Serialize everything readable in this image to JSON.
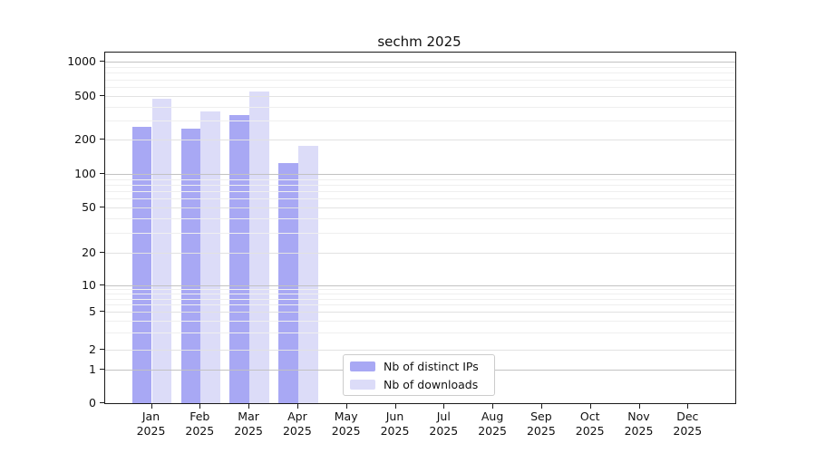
{
  "title": "sechm 2025",
  "legend": {
    "items": [
      {
        "label": "Nb of distinct IPs",
        "color": "#a8a8f4"
      },
      {
        "label": "Nb of downloads",
        "color": "#dcdcf8"
      }
    ]
  },
  "chart_data": {
    "type": "bar",
    "title": "sechm 2025",
    "x_tick_labels": [
      {
        "month": "Jan",
        "year": "2025"
      },
      {
        "month": "Feb",
        "year": "2025"
      },
      {
        "month": "Mar",
        "year": "2025"
      },
      {
        "month": "Apr",
        "year": "2025"
      },
      {
        "month": "May",
        "year": "2025"
      },
      {
        "month": "Jun",
        "year": "2025"
      },
      {
        "month": "Jul",
        "year": "2025"
      },
      {
        "month": "Aug",
        "year": "2025"
      },
      {
        "month": "Sep",
        "year": "2025"
      },
      {
        "month": "Oct",
        "year": "2025"
      },
      {
        "month": "Nov",
        "year": "2025"
      },
      {
        "month": "Dec",
        "year": "2025"
      }
    ],
    "series": [
      {
        "name": "Nb of distinct IPs",
        "color": "#a8a8f4",
        "values": [
          260,
          250,
          335,
          125,
          null,
          null,
          null,
          null,
          null,
          null,
          null,
          null
        ]
      },
      {
        "name": "Nb of downloads",
        "color": "#dcdcf8",
        "values": [
          475,
          360,
          545,
          175,
          null,
          null,
          null,
          null,
          null,
          null,
          null,
          null
        ]
      }
    ],
    "y_axis": {
      "scale": "log-like",
      "ticks": [
        0,
        1,
        2,
        5,
        10,
        20,
        50,
        100,
        200,
        500,
        1000
      ],
      "top_value": 1100
    },
    "grid": true,
    "legend_position": "lower center"
  }
}
